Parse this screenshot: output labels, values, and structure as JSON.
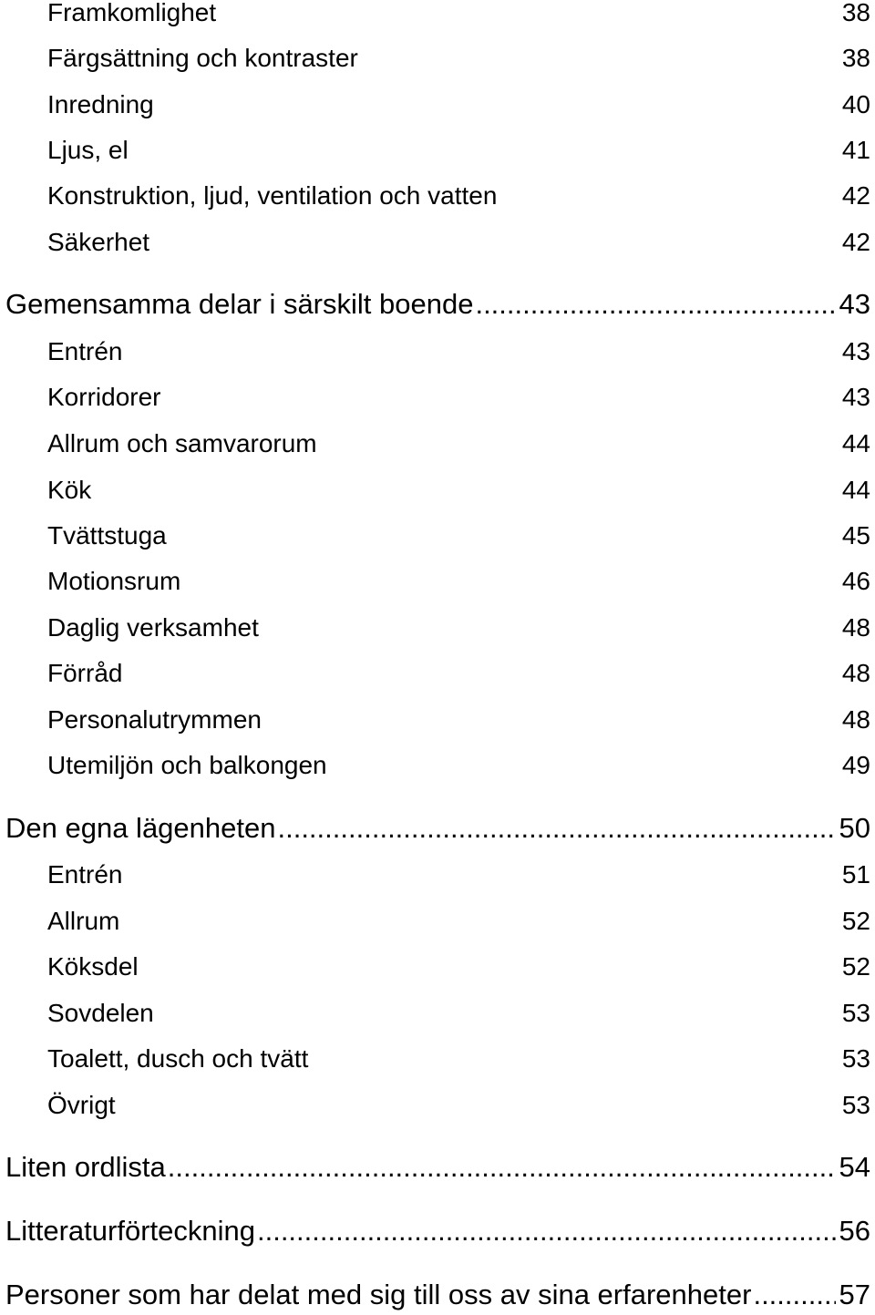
{
  "toc": [
    {
      "title": "Framkomlighet",
      "page": "38",
      "level": 2
    },
    {
      "title": "Färgsättning och kontraster",
      "page": "38",
      "level": 2
    },
    {
      "title": "Inredning",
      "page": "40",
      "level": 2
    },
    {
      "title": "Ljus, el",
      "page": "41",
      "level": 2
    },
    {
      "title": "Konstruktion, ljud, ventilation och vatten",
      "page": "42",
      "level": 2
    },
    {
      "title": "Säkerhet",
      "page": "42",
      "level": 2
    },
    {
      "title": "Gemensamma delar i särskilt boende",
      "page": "43",
      "level": 1
    },
    {
      "title": "Entrén",
      "page": "43",
      "level": 2
    },
    {
      "title": "Korridorer",
      "page": "43",
      "level": 2
    },
    {
      "title": "Allrum och samvarorum",
      "page": "44",
      "level": 2
    },
    {
      "title": "Kök",
      "page": "44",
      "level": 2
    },
    {
      "title": "Tvättstuga",
      "page": "45",
      "level": 2
    },
    {
      "title": "Motionsrum",
      "page": "46",
      "level": 2
    },
    {
      "title": "Daglig verksamhet",
      "page": "48",
      "level": 2
    },
    {
      "title": "Förråd",
      "page": "48",
      "level": 2
    },
    {
      "title": "Personalutrymmen",
      "page": "48",
      "level": 2
    },
    {
      "title": "Utemiljön och balkongen",
      "page": "49",
      "level": 2
    },
    {
      "title": "Den egna lägenheten",
      "page": "50",
      "level": 1
    },
    {
      "title": "Entrén",
      "page": "51",
      "level": 2
    },
    {
      "title": "Allrum",
      "page": "52",
      "level": 2
    },
    {
      "title": "Köksdel",
      "page": "52",
      "level": 2
    },
    {
      "title": "Sovdelen",
      "page": "53",
      "level": 2
    },
    {
      "title": "Toalett, dusch och tvätt",
      "page": "53",
      "level": 2
    },
    {
      "title": "Övrigt",
      "page": "53",
      "level": 2
    },
    {
      "title": "Liten ordlista",
      "page": "54",
      "level": 1
    },
    {
      "title": "Litteraturförteckning",
      "page": "56",
      "level": 1
    },
    {
      "title": "Personer som har delat med sig till oss av sina erfarenheter",
      "page": "57",
      "level": 1
    }
  ]
}
